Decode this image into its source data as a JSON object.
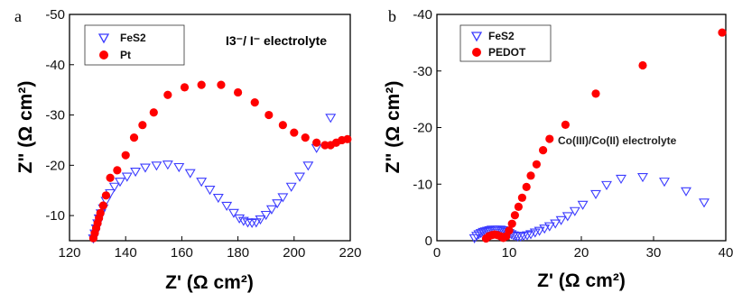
{
  "chart_data": [
    {
      "type": "scatter",
      "panel_label": "a",
      "xlabel": "Z' (Ω cm²)",
      "ylabel": "Z\" (Ω cm²)",
      "xlim": [
        120,
        220
      ],
      "ylim": [
        -50,
        -5
      ],
      "y_inverted": true,
      "x_ticks": [
        120,
        140,
        160,
        180,
        200,
        220
      ],
      "y_ticks": [
        -50,
        -40,
        -30,
        -20,
        -10
      ],
      "annotation": "I3⁻/ I⁻ electrolyte",
      "legend_position": "top-left",
      "series": [
        {
          "name": "FeS2",
          "marker": "open-triangle-down",
          "color": "#3b3bff",
          "points": [
            [
              127.5,
              -3.5
            ],
            [
              128,
              -4.5
            ],
            [
              128.5,
              -5.5
            ],
            [
              129,
              -6.5
            ],
            [
              129.5,
              -7.5
            ],
            [
              130,
              -8.5
            ],
            [
              130.5,
              -9.5
            ],
            [
              131.2,
              -10.5
            ],
            [
              132,
              -11.5
            ],
            [
              133,
              -13
            ],
            [
              134.5,
              -14.5
            ],
            [
              136,
              -15.8
            ],
            [
              138,
              -16.8
            ],
            [
              140.5,
              -17.8
            ],
            [
              143.5,
              -18.8
            ],
            [
              147,
              -19.6
            ],
            [
              151,
              -20
            ],
            [
              155,
              -20.2
            ],
            [
              159,
              -19.7
            ],
            [
              163,
              -18.5
            ],
            [
              167,
              -16.8
            ],
            [
              170,
              -15.2
            ],
            [
              173,
              -13.6
            ],
            [
              176,
              -12
            ],
            [
              178.5,
              -10.6
            ],
            [
              180.5,
              -9.5
            ],
            [
              182,
              -9
            ],
            [
              183.5,
              -8.7
            ],
            [
              185,
              -8.6
            ],
            [
              186.5,
              -8.7
            ],
            [
              188,
              -9.3
            ],
            [
              190,
              -10.2
            ],
            [
              192,
              -11.3
            ],
            [
              194,
              -12.5
            ],
            [
              196,
              -13.7
            ],
            [
              199,
              -15.8
            ],
            [
              202,
              -17.8
            ],
            [
              205,
              -20
            ],
            [
              208,
              -23.5
            ],
            [
              213,
              -29.5
            ]
          ]
        },
        {
          "name": "Pt",
          "marker": "filled-circle",
          "color": "#ff0000",
          "points": [
            [
              127.5,
              -3
            ],
            [
              128,
              -4.5
            ],
            [
              128.5,
              -5.5
            ],
            [
              129,
              -6.5
            ],
            [
              129.5,
              -7.5
            ],
            [
              130,
              -8.5
            ],
            [
              130.5,
              -9.5
            ],
            [
              131,
              -10.5
            ],
            [
              132,
              -12
            ],
            [
              133,
              -14
            ],
            [
              134.5,
              -17.5
            ],
            [
              137,
              -19
            ],
            [
              140,
              -22
            ],
            [
              143,
              -25.5
            ],
            [
              146,
              -28
            ],
            [
              150,
              -30.5
            ],
            [
              155,
              -34
            ],
            [
              161,
              -35.5
            ],
            [
              167,
              -36
            ],
            [
              174,
              -36
            ],
            [
              180,
              -34.5
            ],
            [
              186,
              -32.5
            ],
            [
              191,
              -30
            ],
            [
              196,
              -28
            ],
            [
              200,
              -26.5
            ],
            [
              204,
              -25.5
            ],
            [
              208,
              -24.5
            ],
            [
              211,
              -24
            ],
            [
              213,
              -24
            ],
            [
              215,
              -24.5
            ],
            [
              217,
              -25
            ],
            [
              219,
              -25.2
            ]
          ]
        }
      ]
    },
    {
      "type": "scatter",
      "panel_label": "b",
      "xlabel": "Z' (Ω cm²)",
      "ylabel": "Z\" (Ω cm²)",
      "xlim": [
        0,
        40
      ],
      "ylim": [
        -40,
        0
      ],
      "y_inverted": true,
      "x_ticks": [
        0,
        10,
        20,
        30,
        40
      ],
      "y_ticks": [
        -40,
        -30,
        -20,
        -10,
        0
      ],
      "annotation": "Co(III)/Co(II) electrolyte",
      "legend_position": "top-left",
      "series": [
        {
          "name": "FeS2",
          "marker": "open-triangle-down",
          "color": "#3b3bff",
          "points": [
            [
              5.2,
              -0.5
            ],
            [
              5.5,
              -0.9
            ],
            [
              5.8,
              -1.2
            ],
            [
              6.1,
              -1.4
            ],
            [
              6.4,
              -1.6
            ],
            [
              6.7,
              -1.7
            ],
            [
              7,
              -1.8
            ],
            [
              7.3,
              -1.9
            ],
            [
              7.6,
              -2
            ],
            [
              7.9,
              -2
            ],
            [
              8.2,
              -2
            ],
            [
              8.5,
              -2
            ],
            [
              8.8,
              -2
            ],
            [
              9.1,
              -1.9
            ],
            [
              9.4,
              -1.8
            ],
            [
              9.7,
              -1.6
            ],
            [
              10,
              -1.4
            ],
            [
              10.3,
              -1.2
            ],
            [
              10.6,
              -1
            ],
            [
              10.9,
              -0.9
            ],
            [
              11.2,
              -0.8
            ],
            [
              11.6,
              -0.8
            ],
            [
              12,
              -0.9
            ],
            [
              12.5,
              -1
            ],
            [
              13,
              -1.2
            ],
            [
              13.6,
              -1.5
            ],
            [
              14.2,
              -1.8
            ],
            [
              14.9,
              -2.2
            ],
            [
              15.6,
              -2.6
            ],
            [
              16.4,
              -3.1
            ],
            [
              17.2,
              -3.7
            ],
            [
              18.1,
              -4.4
            ],
            [
              19.1,
              -5.3
            ],
            [
              20.2,
              -6.4
            ],
            [
              22,
              -8.3
            ],
            [
              23.5,
              -9.9
            ],
            [
              25.5,
              -11
            ],
            [
              28.5,
              -11.3
            ],
            [
              31.5,
              -10.5
            ],
            [
              34.5,
              -8.8
            ],
            [
              37,
              -6.8
            ]
          ]
        },
        {
          "name": "PEDOT",
          "marker": "filled-circle",
          "color": "#ff0000",
          "points": [
            [
              6.8,
              -0.4
            ],
            [
              7.2,
              -0.8
            ],
            [
              7.6,
              -1
            ],
            [
              8,
              -1.1
            ],
            [
              8.4,
              -1
            ],
            [
              8.8,
              -0.8
            ],
            [
              9.2,
              -0.5
            ],
            [
              9.6,
              -0.8
            ],
            [
              10,
              -1.8
            ],
            [
              10.4,
              -3
            ],
            [
              10.8,
              -4.5
            ],
            [
              11.3,
              -6
            ],
            [
              11.8,
              -7.6
            ],
            [
              12.4,
              -9.5
            ],
            [
              13,
              -11.5
            ],
            [
              13.8,
              -13.5
            ],
            [
              14.7,
              -16
            ],
            [
              15.6,
              -18
            ],
            [
              17.8,
              -20.5
            ],
            [
              22,
              -26
            ],
            [
              28.5,
              -31
            ],
            [
              39.5,
              -36.8
            ]
          ]
        }
      ]
    }
  ]
}
